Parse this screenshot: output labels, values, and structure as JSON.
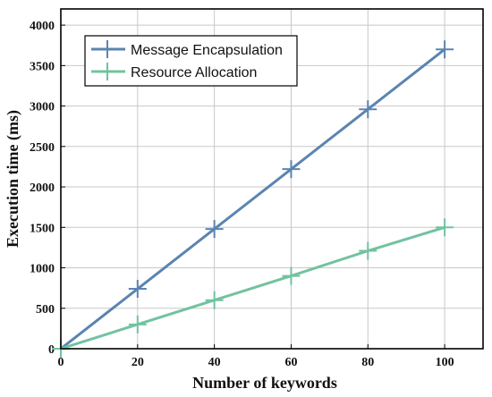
{
  "chart_data": {
    "type": "line",
    "xlabel": "Number of keywords",
    "ylabel": "Execution time (ms)",
    "xlim": [
      0,
      110
    ],
    "ylim": [
      0,
      4200
    ],
    "xticks": [
      0,
      20,
      40,
      60,
      80,
      100
    ],
    "yticks": [
      0,
      500,
      1000,
      1500,
      2000,
      2500,
      3000,
      3500,
      4000
    ],
    "grid": true,
    "legend_position": "top-left",
    "x": [
      0,
      20,
      40,
      60,
      80,
      100
    ],
    "series": [
      {
        "name": "Message Encapsulation",
        "color": "#5b84b1",
        "values": [
          0,
          740,
          1480,
          2220,
          2960,
          3700
        ]
      },
      {
        "name": "Resource Allocation",
        "color": "#72c2a0",
        "values": [
          0,
          300,
          600,
          900,
          1210,
          1500
        ]
      }
    ]
  }
}
